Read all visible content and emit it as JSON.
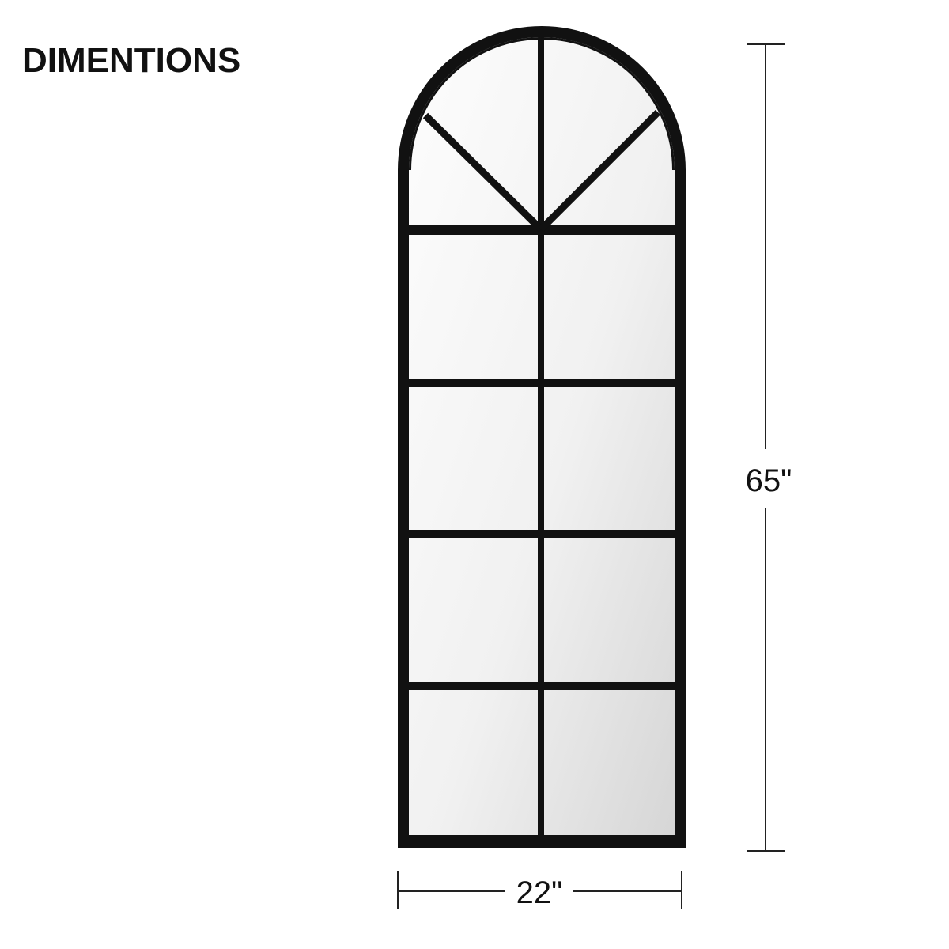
{
  "heading": "DIMENTIONS",
  "dimensions": {
    "height_label": "65\"",
    "width_label": "22\""
  },
  "colors": {
    "frame": "#111111",
    "glass_light": "#fbfbfb",
    "glass_dark": "#d9d9d9",
    "guide_line": "#222222"
  }
}
